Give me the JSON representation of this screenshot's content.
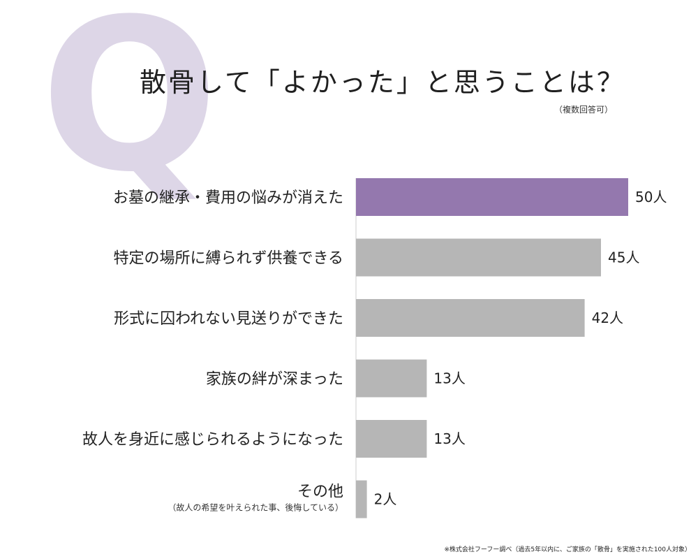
{
  "header": {
    "q_mark": "Q",
    "title": "散骨して「よかった」と思うことは？",
    "subtitle": "（複数回答可）"
  },
  "footnote": "※株式会社フーフー調べ（過去5年以内に、ご家族の「散骨」を実施された100人対象）",
  "colors": {
    "highlight": "#9478ae",
    "bar": "#b6b6b6",
    "q_mark": "#ddd6e7",
    "axis": "#cccccc"
  },
  "chart_data": {
    "type": "bar",
    "orientation": "horizontal",
    "unit": "人",
    "categories": [
      "お墓の継承・費用の悩みが消えた",
      "特定の場所に縛られず供養できる",
      "形式に囚われない見送りができた",
      "家族の絆が深まった",
      "故人を身近に感じられるようになった",
      "その他"
    ],
    "category_notes": [
      "",
      "",
      "",
      "",
      "",
      "（故人の希望を叶えられた事、後悔している）"
    ],
    "values": [
      50,
      45,
      42,
      13,
      13,
      2
    ],
    "value_labels": [
      "50人",
      "45人",
      "42人",
      "13人",
      "13人",
      "2人"
    ],
    "highlight_index": 0,
    "xlim": [
      0,
      50
    ]
  }
}
